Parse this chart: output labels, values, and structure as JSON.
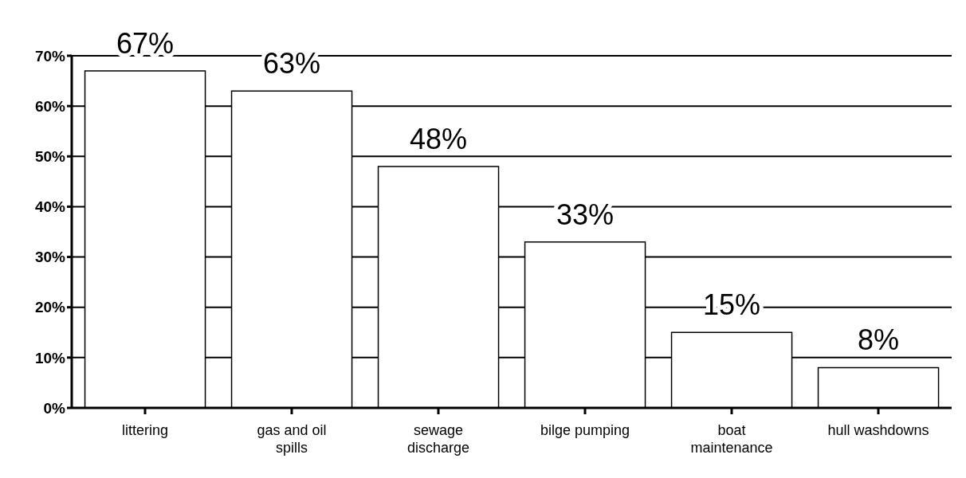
{
  "chart_data": {
    "type": "bar",
    "categories": [
      "littering",
      "gas and oil spills",
      "sewage discharge",
      "bilge pumping",
      "boat maintenance",
      "hull washdowns"
    ],
    "values": [
      67,
      63,
      48,
      33,
      15,
      8
    ],
    "color": "#ffffff",
    "value_labels": [
      "67%",
      "63%",
      "48%",
      "33%",
      "15%",
      "8%"
    ],
    "ylim": [
      0,
      70
    ],
    "yticks": [
      {
        "value": 0,
        "label": "0%"
      },
      {
        "value": 10,
        "label": "10%"
      },
      {
        "value": 20,
        "label": "20%"
      },
      {
        "value": 30,
        "label": "30%"
      },
      {
        "value": 40,
        "label": "40%"
      },
      {
        "value": 50,
        "label": "50%"
      },
      {
        "value": 60,
        "label": "60%"
      },
      {
        "value": 70,
        "label": "70%"
      }
    ],
    "grid": "y"
  }
}
